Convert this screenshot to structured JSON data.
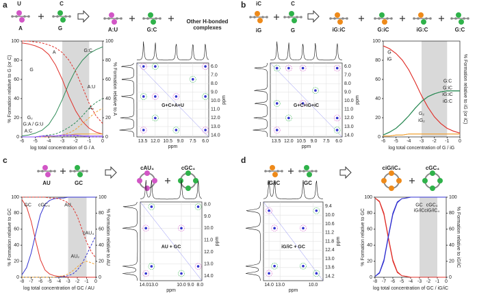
{
  "panels": [
    {
      "letter": "a",
      "scheme_labels": [
        "U",
        "A",
        "C",
        "G",
        "A:U",
        "G:C",
        "Other H-bonded",
        "complexes"
      ]
    },
    {
      "letter": "b",
      "scheme_labels": [
        "iC",
        "iG",
        "C",
        "G",
        "iG:iC",
        "G:iC",
        "iG:C",
        "G:C"
      ]
    },
    {
      "letter": "c",
      "scheme_labels": [
        "AU",
        "GC",
        "cAU₄",
        "cGC₄"
      ]
    },
    {
      "letter": "d",
      "scheme_labels": [
        "iG/iC",
        "GC",
        "ciG/iC₄",
        "cGC₄"
      ]
    }
  ],
  "chart_data": [
    {
      "type": "line",
      "x_label": "log total concentration of G / A",
      "y_label": "% Formation relative to G (or C)",
      "y2_label": "% Formation relative to A",
      "x": [
        -6,
        -5.5,
        -5,
        -4.5,
        -4,
        -3.5,
        -3,
        -2.5,
        -2,
        -1.5,
        -1,
        -0.5,
        0
      ],
      "xlim": [
        -6,
        0
      ],
      "xticks": [
        -6,
        -5,
        -4,
        -3,
        -2,
        -1,
        0
      ],
      "ylim": [
        0,
        100
      ],
      "yticks": [
        0,
        20,
        40,
        60,
        80,
        100
      ],
      "y2lim": [
        0,
        100
      ],
      "y2ticks": [
        0,
        20,
        40,
        60,
        80,
        100
      ],
      "shaded_range": [
        -3,
        -1
      ],
      "series": [
        {
          "name": "G",
          "color": "#e0302a",
          "style": "solid",
          "values": [
            98,
            97,
            95,
            92,
            86,
            75,
            60,
            42,
            27,
            16,
            9,
            5,
            3
          ]
        },
        {
          "name": "A",
          "color": "#e0302a",
          "style": "dashed",
          "axis": "y2",
          "values": [
            100,
            100,
            99,
            98,
            96,
            93,
            88,
            80,
            68,
            52,
            35,
            22,
            14
          ]
        },
        {
          "name": "G:C",
          "color": "#2e8b57",
          "style": "solid",
          "values": [
            1,
            2,
            4,
            7,
            13,
            24,
            39,
            56,
            70,
            80,
            87,
            91,
            94
          ]
        },
        {
          "name": "A:U",
          "color": "#2e8b57",
          "style": "dashed",
          "axis": "y2",
          "values": [
            0,
            0,
            0,
            1,
            2,
            3,
            6,
            10,
            15,
            22,
            30,
            36,
            40
          ]
        },
        {
          "name": "A₂",
          "color": "#f0a030",
          "style": "dashed",
          "axis": "y2",
          "values": [
            0,
            0,
            0,
            0,
            0,
            1,
            2,
            4,
            8,
            14,
            20,
            26,
            30
          ]
        },
        {
          "name": "G₂",
          "color": "#f0a030",
          "style": "solid",
          "values": [
            0,
            0,
            0,
            0,
            1,
            1,
            2,
            2,
            3,
            3,
            3,
            3,
            3
          ]
        },
        {
          "name": "G:A / G:U",
          "color": "#8a4fff",
          "style": "solid",
          "values": [
            0,
            0,
            0,
            1,
            1,
            1,
            2,
            2,
            2,
            1,
            1,
            1,
            1
          ]
        },
        {
          "name": "A:C",
          "color": "#8a4fff",
          "style": "dashed",
          "values": [
            0,
            0,
            0,
            0,
            1,
            1,
            1,
            1,
            1,
            1,
            0,
            0,
            0
          ]
        }
      ]
    },
    {
      "type": "nmr",
      "label": "G+C+A+U",
      "x_label": "ppm",
      "y_label": "ppm",
      "xlim": [
        14.2,
        5.6
      ],
      "ylim": [
        5.6,
        14.2
      ],
      "xticks": [
        13.5,
        {
          "value": 12,
          "label": "12.0"
        },
        10.5,
        {
          "value": 9,
          "label": "9.0"
        },
        7.5,
        {
          "value": 6,
          "label": "6.0"
        }
      ],
      "yticks": [
        {
          "value": 6,
          "label": "6.0"
        },
        {
          "value": 7,
          "label": "7.0"
        },
        {
          "value": 8,
          "label": "8.0"
        },
        {
          "value": 9,
          "label": "9.0"
        },
        {
          "value": 10,
          "label": "10.0"
        },
        {
          "value": 11,
          "label": "11.0"
        },
        {
          "value": 12,
          "label": "12.0"
        },
        {
          "value": 13,
          "label": "13.0"
        },
        {
          "value": 14,
          "label": "14.0"
        }
      ],
      "x": [
        13.4,
        12.0,
        9.5,
        7.5,
        6.0,
        13.4,
        12.0,
        9.5,
        6.0,
        6.0,
        13.4,
        12.0
      ],
      "y": [
        13.4,
        12.0,
        9.5,
        7.5,
        6.0,
        9.5,
        9.5,
        13.4,
        13.4,
        9.5,
        6.0,
        6.0
      ]
    },
    {
      "type": "nmr",
      "label": "G+C+iG+iC",
      "x_label": "ppm",
      "y_label": "ppm",
      "xlim": [
        14.2,
        5.6
      ],
      "ylim": [
        5.6,
        14.2
      ],
      "xticks": [
        13.5,
        {
          "value": 12,
          "label": "12.0"
        },
        10.5,
        {
          "value": 9,
          "label": "9.0"
        },
        7.5,
        {
          "value": 6,
          "label": "6.0"
        }
      ],
      "yticks": [
        {
          "value": 6,
          "label": "6.0"
        },
        {
          "value": 7,
          "label": "7.0"
        },
        {
          "value": 8,
          "label": "8.0"
        },
        {
          "value": 9,
          "label": "9.0"
        },
        {
          "value": 10,
          "label": "10.0"
        },
        {
          "value": 11,
          "label": "11.0"
        },
        {
          "value": 12,
          "label": "12.0"
        },
        {
          "value": 13,
          "label": "13.0"
        },
        {
          "value": 14,
          "label": "14.0"
        }
      ],
      "x": [
        13.4,
        12.0,
        10.3,
        8.8,
        6.2,
        13.4,
        12.0,
        6.2,
        6.2,
        13.4,
        10.3
      ],
      "y": [
        13.4,
        12.0,
        10.3,
        8.8,
        6.2,
        6.2,
        6.2,
        13.4,
        12.0,
        10.3,
        6.2
      ]
    },
    {
      "type": "line",
      "x_label": "log total concentration of G / iG",
      "y2_label": "% Formation relative to iG (or iC)",
      "x": [
        -6,
        -5.5,
        -5,
        -4.5,
        -4,
        -3.5,
        -3,
        -2.5,
        -2,
        -1.5,
        -1,
        -0.5,
        0
      ],
      "xlim": [
        -6,
        0
      ],
      "xticks": [
        -6,
        -5,
        -4,
        -3,
        -2,
        -1,
        0
      ],
      "ylim": [
        0,
        100
      ],
      "yticks": [
        0,
        20,
        40,
        60,
        80,
        100
      ],
      "shaded_range": [
        -3,
        -1
      ],
      "series": [
        {
          "name": "G",
          "color": "#e0302a",
          "style": "solid",
          "values": [
            95,
            92,
            87,
            80,
            70,
            57,
            43,
            31,
            21,
            14,
            9,
            6,
            4
          ]
        },
        {
          "name": "iG",
          "color": "#e0302a",
          "style": "solid",
          "values": [
            95,
            92,
            87,
            80,
            70,
            57,
            43,
            31,
            21,
            14,
            9,
            6,
            4
          ]
        },
        {
          "name": "G:C",
          "color": "#2e8b57",
          "style": "solid",
          "values": [
            2,
            5,
            9,
            15,
            22,
            30,
            37,
            42,
            45,
            47,
            48,
            48,
            48
          ]
        },
        {
          "name": "G:iC",
          "color": "#2e8b57",
          "style": "solid",
          "values": [
            2,
            5,
            9,
            15,
            22,
            30,
            37,
            42,
            45,
            47,
            48,
            48,
            48
          ]
        },
        {
          "name": "iG:iC",
          "color": "#2e8b57",
          "style": "solid",
          "values": [
            2,
            5,
            9,
            15,
            22,
            30,
            37,
            42,
            45,
            47,
            48,
            48,
            48
          ]
        },
        {
          "name": "iG:C",
          "color": "#2e8b57",
          "style": "solid",
          "values": [
            2,
            5,
            9,
            15,
            22,
            30,
            37,
            42,
            45,
            47,
            48,
            48,
            48
          ]
        },
        {
          "name": "G₂",
          "color": "#f0a030",
          "style": "solid",
          "values": [
            1,
            1,
            2,
            2,
            3,
            3,
            3,
            3,
            3,
            3,
            3,
            3,
            3
          ]
        },
        {
          "name": "iG₂",
          "color": "#f0a030",
          "style": "solid",
          "values": [
            1,
            1,
            2,
            2,
            3,
            3,
            3,
            3,
            3,
            3,
            3,
            3,
            3
          ]
        }
      ]
    },
    {
      "type": "line",
      "x_label": "log total concentration of GC / AU",
      "y_label": "% Formation relative to GC",
      "y2_label": "% Formation relative to AU",
      "x": [
        -8,
        -7.5,
        -7,
        -6.5,
        -6,
        -5.5,
        -5,
        -4.5,
        -4,
        -3.5,
        -3,
        -2.5,
        -2,
        -1.5,
        -1,
        -0.5,
        0
      ],
      "xlim": [
        -8,
        0
      ],
      "xticks": [
        -8,
        -7,
        -6,
        -5,
        -4,
        -3,
        -2,
        -1,
        0
      ],
      "ylim": [
        0,
        100
      ],
      "yticks": [
        0,
        20,
        40,
        60,
        80,
        100
      ],
      "y2lim": [
        0,
        100
      ],
      "y2ticks": [
        0,
        20,
        40,
        60,
        80,
        100
      ],
      "shaded_range": [
        -3,
        -1
      ],
      "series": [
        {
          "name": "GC",
          "color": "#e0302a",
          "style": "solid",
          "values": [
            97,
            88,
            70,
            45,
            22,
            9,
            4,
            2,
            1,
            1,
            0,
            0,
            0,
            0,
            0,
            0,
            0
          ]
        },
        {
          "name": "cGC₄",
          "color": "#3030d0",
          "style": "solid",
          "values": [
            3,
            12,
            30,
            55,
            78,
            91,
            96,
            98,
            99,
            99,
            100,
            100,
            100,
            100,
            100,
            100,
            100
          ]
        },
        {
          "name": "AU",
          "color": "#e0302a",
          "style": "dashed",
          "axis": "y2",
          "values": [
            100,
            100,
            100,
            100,
            100,
            100,
            99,
            99,
            98,
            96,
            93,
            87,
            76,
            60,
            44,
            32,
            24
          ]
        },
        {
          "name": "cAU₄",
          "color": "#3030d0",
          "style": "dashed",
          "axis": "y2",
          "values": [
            0,
            0,
            0,
            0,
            0,
            0,
            0,
            0,
            0,
            1,
            2,
            4,
            9,
            17,
            28,
            40,
            52
          ]
        },
        {
          "name": "AU₂",
          "color": "#f0a030",
          "style": "dashed",
          "axis": "y2",
          "values": [
            0,
            0,
            0,
            0,
            0,
            0,
            0,
            0,
            1,
            2,
            4,
            8,
            13,
            18,
            20,
            18,
            16
          ]
        }
      ]
    },
    {
      "type": "nmr",
      "label": "AU + GC",
      "x_label": "ppm",
      "y_label": "ppm",
      "xlim": [
        14.4,
        7.8
      ],
      "ylim": [
        7.8,
        14.4
      ],
      "xticks": [
        {
          "value": 14,
          "label": "14.0"
        },
        {
          "value": 13,
          "label": "13.0"
        },
        {
          "value": 10,
          "label": "10.0"
        },
        {
          "value": 9,
          "label": "9.0"
        },
        {
          "value": 8,
          "label": "8.0"
        }
      ],
      "yticks": [
        {
          "value": 8,
          "label": "8.0"
        },
        {
          "value": 9,
          "label": "9.0"
        },
        {
          "value": 10,
          "label": "10.0"
        },
        {
          "value": 11,
          "label": "11.0"
        },
        {
          "value": 12,
          "label": "12.0"
        },
        {
          "value": 13,
          "label": "13.0"
        },
        {
          "value": 14,
          "label": "14.0"
        }
      ],
      "x": [
        13.8,
        13.2,
        10.0,
        8.2,
        13.8,
        10.0,
        8.2,
        13.2
      ],
      "y": [
        13.8,
        13.2,
        10.0,
        8.2,
        10.0,
        13.8,
        13.2,
        8.2
      ]
    },
    {
      "type": "nmr",
      "label": "iG/iC + GC",
      "x_label": "ppm",
      "y_label": "ppm",
      "xlim": [
        14.5,
        9.1
      ],
      "ylim": [
        9.1,
        14.5
      ],
      "xticks": [
        {
          "value": 14,
          "label": "14.0"
        },
        {
          "value": 13,
          "label": "13.0"
        },
        {
          "value": 10,
          "label": "10.0"
        }
      ],
      "yticks": [
        9.4,
        {
          "value": 10,
          "label": "10.0"
        },
        10.6,
        11.2,
        11.8,
        12.4,
        {
          "value": 13,
          "label": "13.0"
        },
        13.6,
        14.2
      ],
      "x": [
        14.0,
        13.5,
        10.9,
        9.7,
        13.5,
        10.9,
        14.0,
        9.7
      ],
      "y": [
        14.0,
        13.5,
        10.9,
        9.7,
        10.9,
        13.5,
        9.7,
        14.0
      ]
    },
    {
      "type": "line",
      "x_label": "log total concentration of GC / iG/iC",
      "y_label": "% Formation relative to GC",
      "y2_label": "% Formation relative to iG/iC",
      "x": [
        -8,
        -7.5,
        -7,
        -6.5,
        -6,
        -5.5,
        -5,
        -4.5,
        -4,
        -3.5,
        -3,
        -2.5,
        -2,
        -1.5,
        -1,
        -0.5,
        0
      ],
      "xlim": [
        -8,
        0
      ],
      "xticks": [
        -8,
        -7,
        -6,
        -5,
        -4,
        -3,
        -2,
        -1,
        0
      ],
      "ylim": [
        0,
        100
      ],
      "yticks": [
        0,
        20,
        40,
        60,
        80,
        100
      ],
      "y2lim": [
        0,
        100
      ],
      "y2ticks": [
        0,
        20,
        40,
        60,
        80,
        100
      ],
      "shaded_range": [
        -3,
        -1
      ],
      "series": [
        {
          "name": "GC",
          "color": "#e0302a",
          "style": "solid",
          "values": [
            99,
            95,
            80,
            50,
            22,
            7,
            2,
            1,
            0,
            0,
            0,
            0,
            0,
            0,
            0,
            0,
            0
          ]
        },
        {
          "name": "iG/iC",
          "color": "#e0302a",
          "style": "solid",
          "values": [
            99,
            94,
            78,
            48,
            20,
            6,
            2,
            1,
            0,
            0,
            0,
            0,
            0,
            0,
            0,
            0,
            0
          ]
        },
        {
          "name": "cGC₄",
          "color": "#3030d0",
          "style": "solid",
          "values": [
            1,
            5,
            20,
            50,
            78,
            93,
            98,
            99,
            100,
            100,
            100,
            100,
            100,
            100,
            100,
            100,
            100
          ]
        },
        {
          "name": "ciG/iC₄",
          "color": "#3030d0",
          "style": "solid",
          "values": [
            1,
            6,
            22,
            52,
            80,
            94,
            98,
            99,
            100,
            100,
            100,
            100,
            100,
            100,
            100,
            100,
            100
          ]
        }
      ]
    }
  ]
}
